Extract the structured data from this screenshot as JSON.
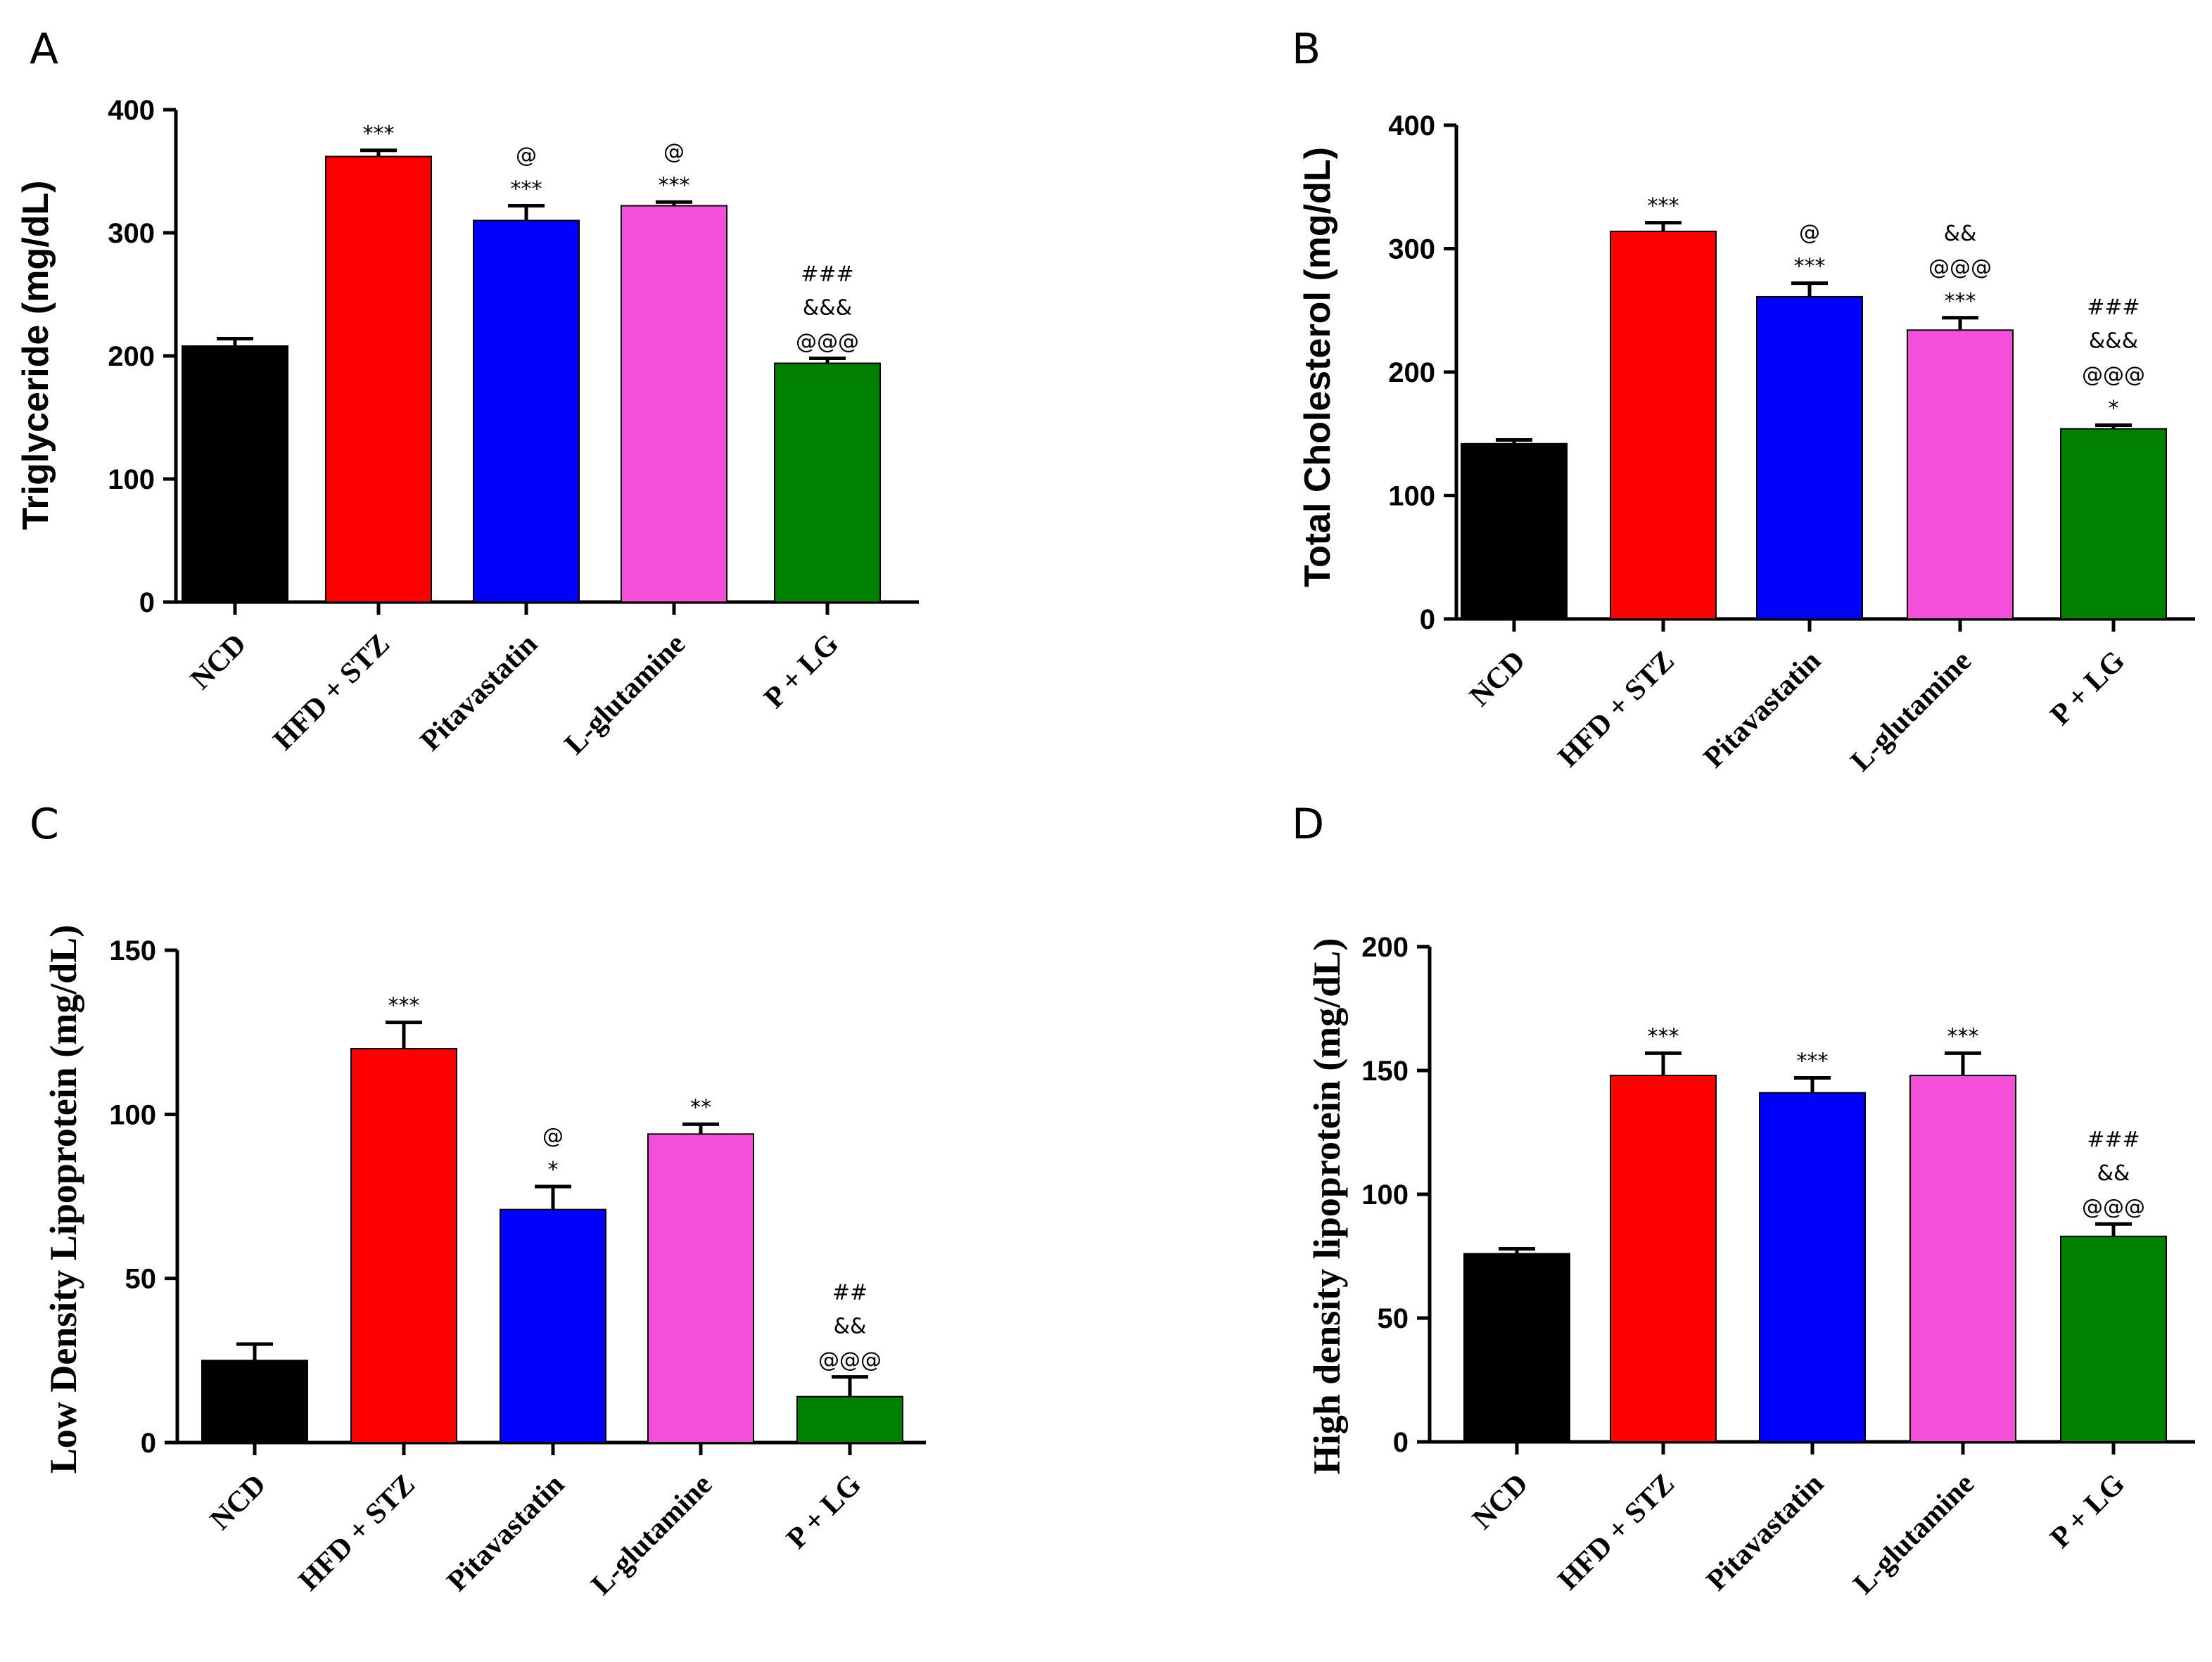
{
  "colors": {
    "NCD": "#000000",
    "HFD + STZ": "#ff0000",
    "Pitavastatin": "#0000ff",
    "L-glutamine": "#f54fd9",
    "P + LG": "#008000"
  },
  "chart_data": [
    {
      "panel": "A",
      "type": "bar",
      "ylabel": "Triglyceride (mg/dL)",
      "ylim": [
        0,
        400
      ],
      "yticks": [
        0,
        100,
        200,
        300,
        400
      ],
      "categories": [
        "NCD",
        "HFD + STZ",
        "Pitavastatin",
        "L-glutamine",
        "P + LG"
      ],
      "values": [
        208,
        362,
        310,
        322,
        194
      ],
      "errors": [
        6,
        5,
        12,
        3,
        4
      ],
      "annotations": [
        [],
        [
          "***"
        ],
        [
          "***",
          "@"
        ],
        [
          "***",
          "@"
        ],
        [
          "@@@",
          "&&&",
          "###"
        ]
      ]
    },
    {
      "panel": "B",
      "type": "bar",
      "ylabel": "Total Cholesterol (mg/dL)",
      "ylim": [
        0,
        400
      ],
      "yticks": [
        0,
        100,
        200,
        300,
        400
      ],
      "categories": [
        "NCD",
        "HFD + STZ",
        "Pitavastatin",
        "L-glutamine",
        "P + LG"
      ],
      "values": [
        142,
        314,
        261,
        234,
        154
      ],
      "errors": [
        3,
        7,
        11,
        10,
        3
      ],
      "annotations": [
        [],
        [
          "***"
        ],
        [
          "***",
          "@"
        ],
        [
          "***",
          "@@@",
          "&&"
        ],
        [
          "*",
          "@@@",
          "&&&",
          "###"
        ]
      ]
    },
    {
      "panel": "C",
      "type": "bar",
      "ylabel": "Low Density Lipoprotein (mg/dL)",
      "ylim": [
        0,
        150
      ],
      "yticks": [
        0,
        50,
        100,
        150
      ],
      "categories": [
        "NCD",
        "HFD + STZ",
        "Pitavastatin",
        "L-glutamine",
        "P + LG"
      ],
      "values": [
        25,
        120,
        71,
        94,
        14
      ],
      "errors": [
        5,
        8,
        7,
        3,
        6
      ],
      "annotations": [
        [],
        [
          "***"
        ],
        [
          "*",
          "@"
        ],
        [
          "**"
        ],
        [
          "@@@",
          "&&",
          "##"
        ]
      ]
    },
    {
      "panel": "D",
      "type": "bar",
      "ylabel": "High density lipoprotein (mg/dL)",
      "ylim": [
        0,
        200
      ],
      "yticks": [
        0,
        50,
        100,
        150,
        200
      ],
      "categories": [
        "NCD",
        "HFD + STZ",
        "Pitavastatin",
        "L-glutamine",
        "P + LG"
      ],
      "values": [
        76,
        148,
        141,
        148,
        83
      ],
      "errors": [
        2,
        9,
        6,
        9,
        5
      ],
      "annotations": [
        [],
        [
          "***"
        ],
        [
          "***"
        ],
        [
          "***"
        ],
        [
          "@@@",
          "&&",
          "###"
        ]
      ]
    }
  ]
}
